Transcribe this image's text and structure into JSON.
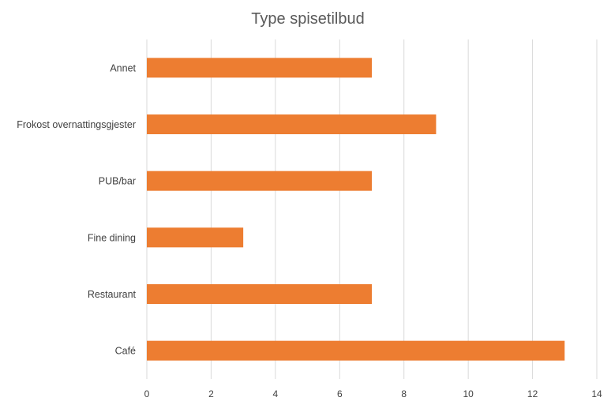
{
  "chart_data": {
    "type": "bar",
    "orientation": "horizontal",
    "title": "Type spisetilbud",
    "xlabel": "",
    "ylabel": "",
    "categories": [
      "Annet",
      "Frokost overnattingsgjester",
      "PUB/bar",
      "Fine dining",
      "Restaurant",
      "Café"
    ],
    "values": [
      7,
      9,
      7,
      3,
      7,
      13
    ],
    "xlim": [
      0,
      14
    ],
    "xticks": [
      0,
      2,
      4,
      6,
      8,
      10,
      12,
      14
    ],
    "grid": true,
    "legend": "none",
    "bar_color": "#ED7D31"
  }
}
